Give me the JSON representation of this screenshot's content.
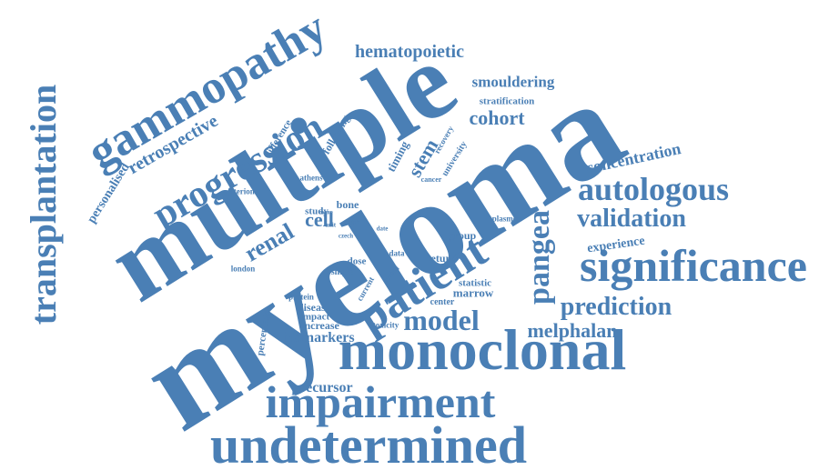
{
  "colors": {
    "word": "#4a7fb5",
    "background": "#ffffff"
  },
  "words": [
    "multiple",
    "myeloma",
    "monoclonal",
    "undetermined",
    "impairment",
    "significance",
    "gammopathy",
    "progression",
    "patient",
    "transplantation",
    "pangea",
    "autologous",
    "validation",
    "prediction",
    "model",
    "melphalan",
    "hematopoietic",
    "retrospective",
    "renal",
    "cohort",
    "stem",
    "smouldering",
    "concentration",
    "biomarkers",
    "precursor",
    "experience",
    "cell",
    "personalised",
    "stratification",
    "following",
    "marrow",
    "increase",
    "disease",
    "impact",
    "return",
    "statistic",
    "group",
    "dose",
    "single",
    "timing",
    "study",
    "bone",
    "difference",
    "recovery",
    "university",
    "percentage",
    "center",
    "toxicity",
    "current",
    "protein",
    "plasmon",
    "data",
    "criterion",
    "athens",
    "london",
    "period",
    "cancer",
    "czech",
    "more",
    "risk",
    "date",
    "unit"
  ]
}
